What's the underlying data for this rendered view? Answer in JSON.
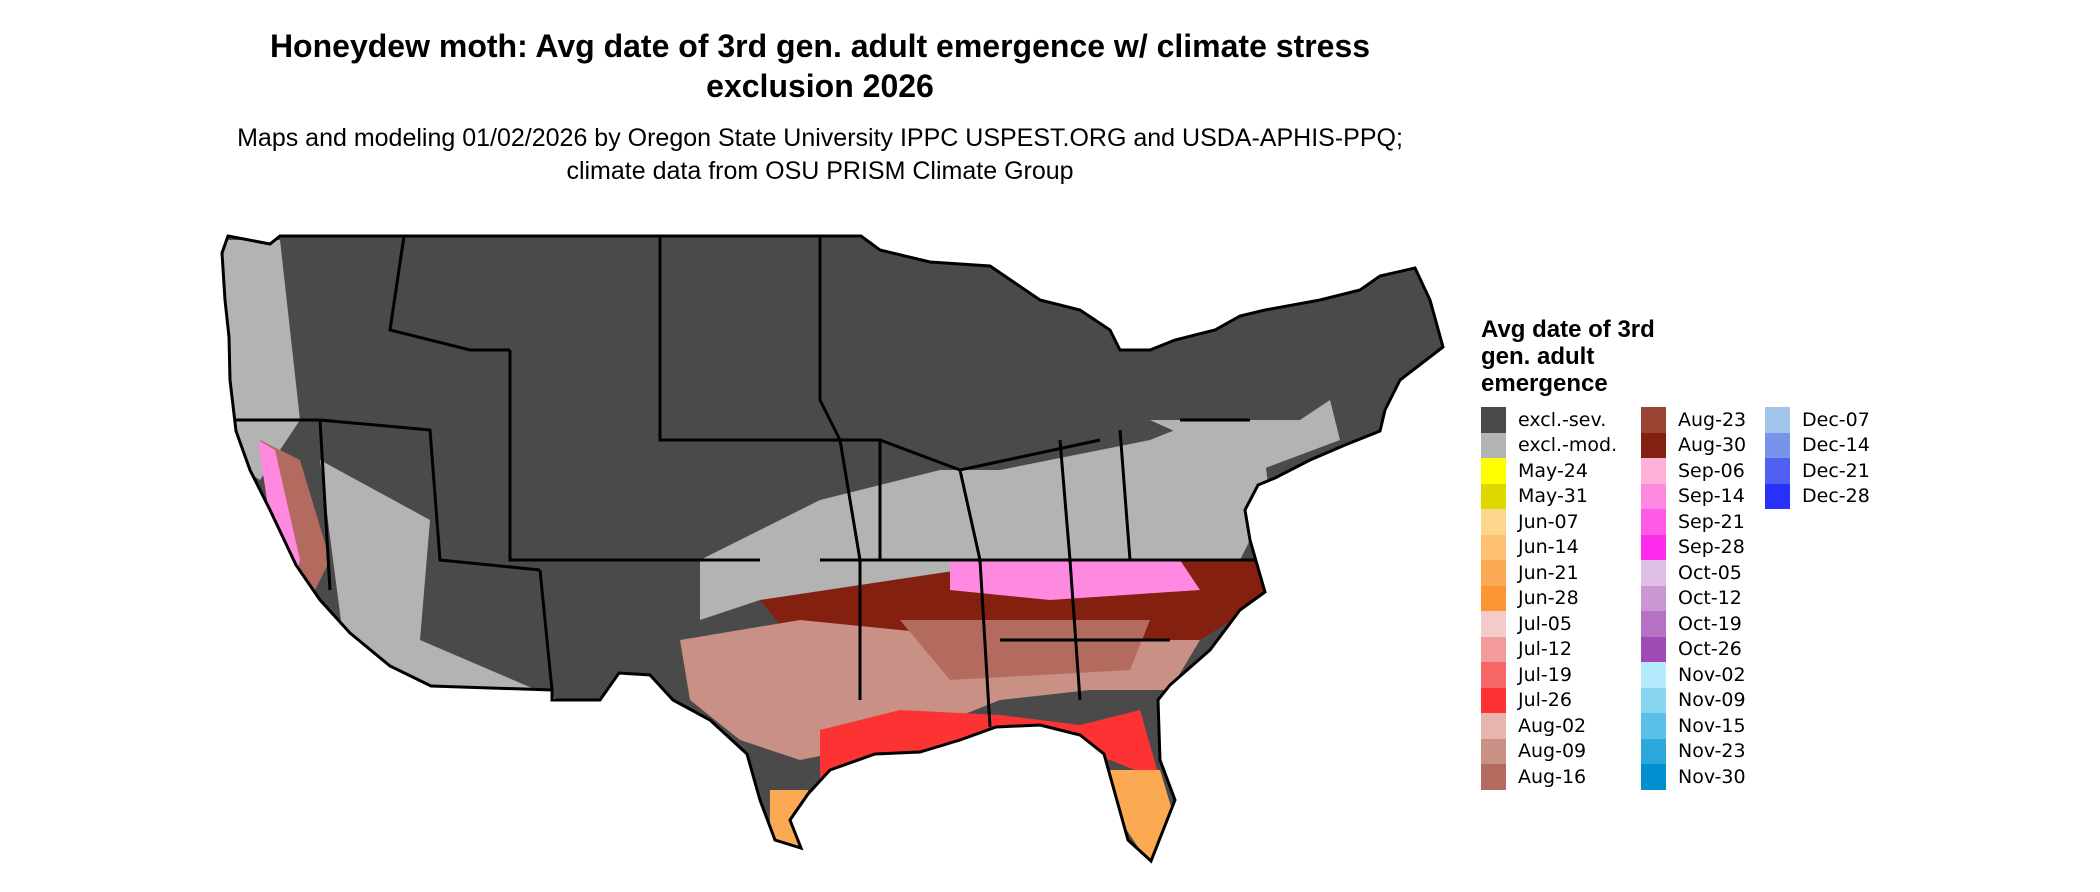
{
  "title": "Honeydew moth: Avg date of 3rd gen. adult emergence w/ climate stress exclusion 2026",
  "subtitle": "Maps and modeling 01/02/2026 by Oregon State University IPPC USPEST.ORG and USDA-APHIS-PPQ; climate data from OSU PRISM Climate Group",
  "legend": {
    "title": "Avg date of 3rd gen. adult emergence",
    "columns": [
      [
        {
          "label": "excl.-sev.",
          "color": "#4a4a4a"
        },
        {
          "label": "excl.-mod.",
          "color": "#b3b3b3"
        },
        {
          "label": "May-24",
          "color": "#ffff00"
        },
        {
          "label": "May-31",
          "color": "#dcd800"
        },
        {
          "label": "Jun-07",
          "color": "#fdd68e"
        },
        {
          "label": "Jun-14",
          "color": "#fdc070"
        },
        {
          "label": "Jun-21",
          "color": "#fca954"
        },
        {
          "label": "Jun-28",
          "color": "#fd9535"
        },
        {
          "label": "Jul-05",
          "color": "#f5cccc"
        },
        {
          "label": "Jul-12",
          "color": "#f49a9a"
        },
        {
          "label": "Jul-19",
          "color": "#f76666"
        },
        {
          "label": "Jul-26",
          "color": "#fd3333"
        },
        {
          "label": "Aug-02",
          "color": "#e6b6ae"
        },
        {
          "label": "Aug-09",
          "color": "#c99085"
        },
        {
          "label": "Aug-16",
          "color": "#b26b5e"
        }
      ],
      [
        {
          "label": "Aug-23",
          "color": "#9a4534"
        },
        {
          "label": "Aug-30",
          "color": "#842010"
        },
        {
          "label": "Sep-06",
          "color": "#ffb0d8"
        },
        {
          "label": "Sep-14",
          "color": "#ff88e0"
        },
        {
          "label": "Sep-21",
          "color": "#ff5ae6"
        },
        {
          "label": "Sep-28",
          "color": "#ff2cef"
        },
        {
          "label": "Oct-05",
          "color": "#e0bfe6"
        },
        {
          "label": "Oct-12",
          "color": "#ca97d4"
        },
        {
          "label": "Oct-19",
          "color": "#b670c4"
        },
        {
          "label": "Oct-26",
          "color": "#a04ab6"
        },
        {
          "label": "Nov-02",
          "color": "#b4ebfd"
        },
        {
          "label": "Nov-09",
          "color": "#88d5f2"
        },
        {
          "label": "Nov-15",
          "color": "#5ac0e8"
        },
        {
          "label": "Nov-23",
          "color": "#2ca7dc"
        },
        {
          "label": "Nov-30",
          "color": "#0090d0"
        }
      ],
      [
        {
          "label": "Dec-07",
          "color": "#a0c4ea"
        },
        {
          "label": "Dec-14",
          "color": "#7894ea"
        },
        {
          "label": "Dec-21",
          "color": "#5060f0"
        },
        {
          "label": "Dec-28",
          "color": "#2830fc"
        }
      ]
    ]
  }
}
